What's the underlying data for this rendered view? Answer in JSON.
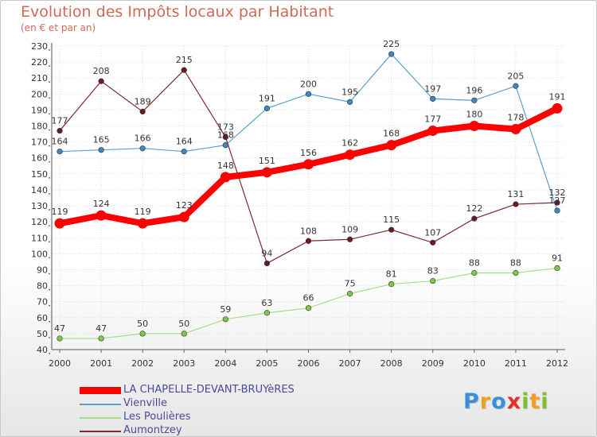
{
  "title": "Evolution des Impôts locaux par Habitant",
  "subtitle": "(en € et par an)",
  "logo": {
    "text": "Proxiti",
    "letters": [
      {
        "ch": "P",
        "color": "#3a8fd9"
      },
      {
        "ch": "r",
        "color": "#f0a020"
      },
      {
        "ch": "o",
        "color": "#3a8fd9"
      },
      {
        "ch": "x",
        "color": "#e03030"
      },
      {
        "ch": "i",
        "color": "#7cc02c"
      },
      {
        "ch": "t",
        "color": "#f0a020"
      },
      {
        "ch": "i",
        "color": "#7cc02c"
      }
    ]
  },
  "chart_data": {
    "type": "line",
    "title": "Evolution des Impôts locaux par Habitant",
    "subtitle": "(en € et par an)",
    "x": [
      "2000",
      "2001",
      "2002",
      "2003",
      "2004",
      "2005",
      "2006",
      "2007",
      "2008",
      "2009",
      "2010",
      "2011",
      "2012"
    ],
    "ylim": [
      40,
      230
    ],
    "yticks": [
      40,
      50,
      60,
      70,
      80,
      90,
      100,
      110,
      120,
      130,
      140,
      150,
      160,
      170,
      180,
      190,
      200,
      210,
      220,
      230
    ],
    "grid": true,
    "legend_position": "bottom-left",
    "series": [
      {
        "name": "Vienville",
        "color": "#5b9fd1",
        "marker": "#3d87c4",
        "emphasis": false,
        "values": [
          164,
          165,
          166,
          164,
          168,
          191,
          200,
          195,
          225,
          197,
          196,
          205,
          127
        ]
      },
      {
        "name": "Les Poulières",
        "color": "#a8dd88",
        "marker": "#7ccb44",
        "emphasis": false,
        "values": [
          47,
          47,
          50,
          50,
          59,
          63,
          66,
          75,
          81,
          83,
          88,
          88,
          91
        ]
      },
      {
        "name": "Aumontzey",
        "color": "#7a2a32",
        "marker": "#6b1a22",
        "emphasis": false,
        "values": [
          177,
          208,
          189,
          215,
          173,
          94,
          108,
          109,
          115,
          107,
          122,
          131,
          132
        ]
      },
      {
        "name": "LA CHAPELLE-DEVANT-BRUYèRES",
        "color": "#ff0000",
        "marker": "#ff0000",
        "emphasis": true,
        "values": [
          119,
          124,
          119,
          123,
          148,
          151,
          156,
          162,
          168,
          177,
          180,
          178,
          191
        ]
      }
    ],
    "legend_order": [
      "LA CHAPELLE-DEVANT-BRUYèRES",
      "Vienville",
      "Les Poulières",
      "Aumontzey"
    ]
  }
}
